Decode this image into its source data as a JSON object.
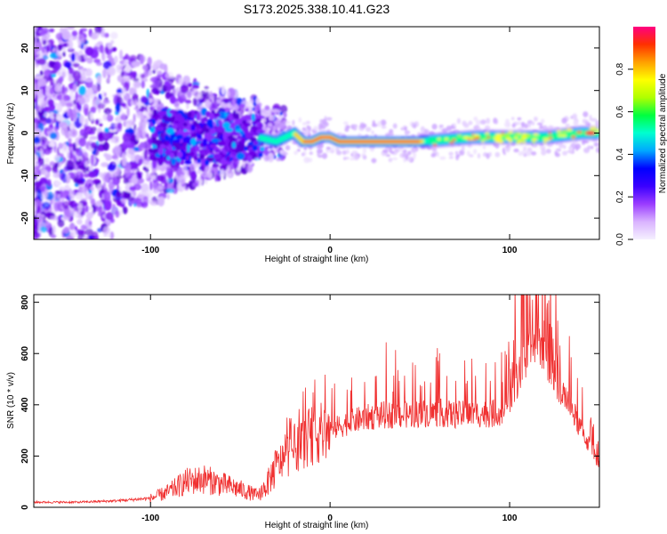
{
  "title": "S173.2025.338.10.41.G23",
  "chart_data": [
    {
      "type": "heatmap",
      "panel": "top",
      "xlabel": "Height of straight line (km)",
      "ylabel": "Frequency (Hz)",
      "xlim": [
        -165,
        150
      ],
      "ylim": [
        -25,
        25
      ],
      "xticks": [
        -100,
        0,
        100
      ],
      "yticks": [
        20,
        10,
        0,
        -10,
        -20
      ],
      "colorbar": {
        "label": "Normalized spectral amplitude",
        "range": [
          0.0,
          1.0
        ],
        "ticks": [
          "0.0",
          "0.2",
          "0.4",
          "0.6",
          "0.8"
        ],
        "colors": [
          "#f5f0ff",
          "#d9b3ff",
          "#9a3cff",
          "#3a00ff",
          "#0000ff",
          "#00a8ff",
          "#00ffd0",
          "#00ff40",
          "#b0ff00",
          "#ffff00",
          "#ffa000",
          "#ff3000",
          "#ff0080"
        ]
      },
      "ridge": {
        "x": [
          -40,
          -30,
          -20,
          -15,
          -10,
          -5,
          0,
          5,
          10,
          50,
          80,
          100,
          120,
          140,
          150
        ],
        "freq": [
          -1,
          -2,
          0,
          -2,
          -2,
          -1,
          -1,
          -2,
          -2,
          -2,
          -1,
          -1,
          -1,
          0,
          0
        ]
      }
    },
    {
      "type": "line",
      "panel": "bottom",
      "xlabel": "Height of straight line (km)",
      "ylabel": "SNR (10 * v/v)",
      "xlim": [
        -165,
        150
      ],
      "ylim": [
        0,
        830
      ],
      "xticks": [
        -100,
        0,
        100
      ],
      "yticks": [
        0,
        200,
        400,
        600,
        800
      ],
      "color": "#f03030",
      "series": [
        {
          "name": "SNR",
          "x": [
            -165,
            -140,
            -120,
            -100,
            -90,
            -80,
            -70,
            -60,
            -50,
            -40,
            -35,
            -30,
            -20,
            -10,
            0,
            10,
            20,
            30,
            40,
            50,
            60,
            70,
            80,
            90,
            95,
            100,
            105,
            110,
            115,
            120,
            125,
            130,
            140,
            150
          ],
          "y": [
            20,
            20,
            25,
            35,
            60,
            100,
            110,
            90,
            70,
            45,
            90,
            160,
            230,
            280,
            300,
            330,
            350,
            360,
            360,
            365,
            370,
            360,
            365,
            365,
            375,
            420,
            510,
            600,
            640,
            600,
            510,
            450,
            300,
            170
          ]
        }
      ]
    }
  ]
}
